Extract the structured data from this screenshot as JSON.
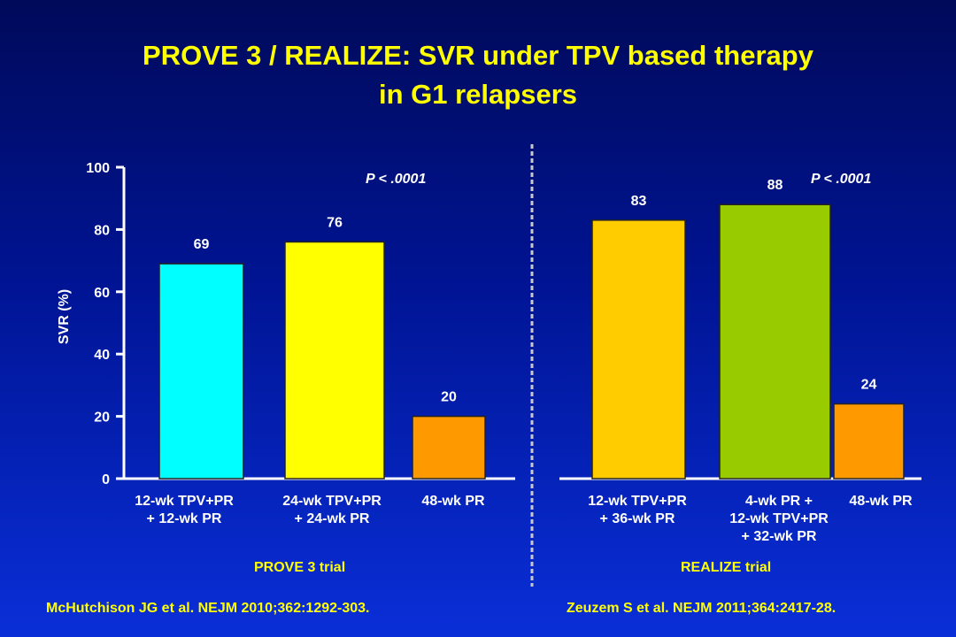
{
  "title": {
    "line1": "PROVE 3 / REALIZE: SVR under TPV based therapy",
    "line2": "in G1 relapsers"
  },
  "chart_data": {
    "type": "bar",
    "ylabel": "SVR (%)",
    "ylim": [
      0,
      100
    ],
    "yticks": [
      0,
      20,
      40,
      60,
      80,
      100
    ],
    "grid": false,
    "groups": [
      {
        "name": "PROVE 3 trial",
        "pvalue": "P < .0001",
        "categories": [
          [
            "12-wk TPV+PR",
            "+ 12-wk PR"
          ],
          [
            "24-wk TPV+PR",
            "+ 24-wk PR"
          ],
          [
            "48-wk PR"
          ]
        ],
        "values": [
          69,
          76,
          20
        ],
        "colors": [
          "#00ffff",
          "#ffff00",
          "#ff9900"
        ]
      },
      {
        "name": "REALIZE trial",
        "pvalue": "P < .0001",
        "categories": [
          [
            "12-wk TPV+PR",
            "+ 36-wk PR"
          ],
          [
            "4-wk PR +",
            "12-wk TPV+PR",
            "+ 32-wk PR"
          ],
          [
            "48-wk PR"
          ]
        ],
        "values": [
          83,
          88,
          24
        ],
        "colors": [
          "#ffcc00",
          "#99cc00",
          "#ff9900"
        ]
      }
    ]
  },
  "references": {
    "left": "McHutchison JG et al. NEJM 2010;362:1292-303.",
    "right": "Zeuzem S et al. NEJM 2011;364:2417-28."
  }
}
